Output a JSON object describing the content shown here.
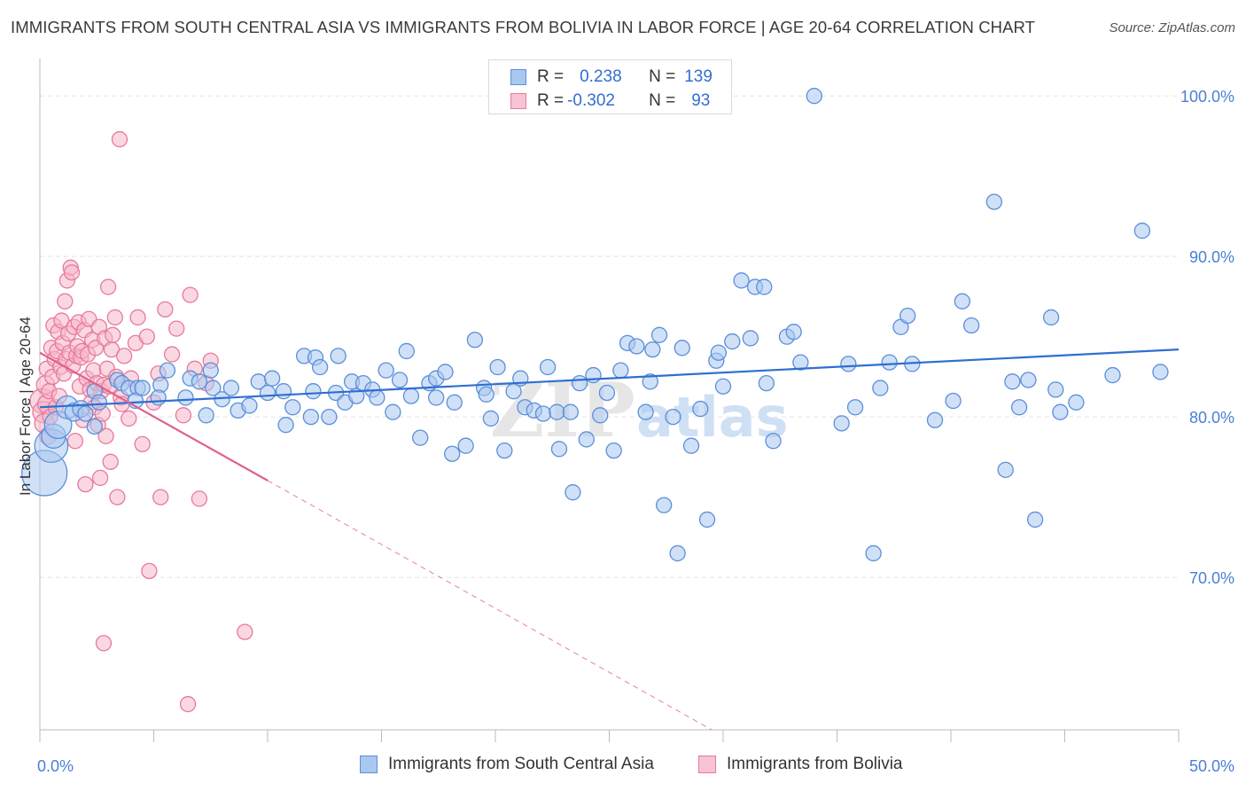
{
  "title": "IMMIGRANTS FROM SOUTH CENTRAL ASIA VS IMMIGRANTS FROM BOLIVIA IN LABOR FORCE | AGE 20-64 CORRELATION CHART",
  "source": "Source: ZipAtlas.com",
  "watermark": {
    "zip": "ZIP",
    "atlas": "atlas"
  },
  "colors": {
    "blue_fill": "#a9c8f0",
    "blue_stroke": "#5b8fd9",
    "blue_line": "#2f6fd0",
    "pink_fill": "#f6b8cb",
    "pink_stroke": "#e8799c",
    "pink_line": "#e0608c",
    "tick_text": "#4a7fd4",
    "grid": "#e3e3e3"
  },
  "legend": {
    "rows": [
      {
        "r_label": "R =",
        "r_value": "0.238",
        "n_label": "N =",
        "n_value": "139"
      },
      {
        "r_label": "R =",
        "r_value": "-0.302",
        "n_label": "N =",
        "n_value": "93"
      }
    ]
  },
  "bottom_legend": [
    {
      "label": "Immigrants from South Central Asia"
    },
    {
      "label": "Immigrants from Bolivia"
    }
  ],
  "chart_data": {
    "type": "scatter",
    "ylabel": "In Labor Force | Age 20-64",
    "xlim": [
      0,
      50
    ],
    "ylim": [
      60.5,
      102
    ],
    "x_tick_labels": [
      {
        "x": 0,
        "label": "0.0%"
      },
      {
        "x": 50,
        "label": "50.0%"
      }
    ],
    "y_tick_labels": [
      {
        "y": 100,
        "label": "100.0%"
      },
      {
        "y": 90,
        "label": "90.0%"
      },
      {
        "y": 80,
        "label": "80.0%"
      },
      {
        "y": 70,
        "label": "70.0%"
      }
    ],
    "series": [
      {
        "name": "Immigrants from South Central Asia",
        "color": "blue",
        "trend": {
          "x0": 0,
          "y0": 80.6,
          "x1": 50,
          "y1": 84.2,
          "solid_until": 50
        },
        "points": [
          [
            0.2,
            76.5,
            3
          ],
          [
            0.5,
            78.2,
            2.2
          ],
          [
            0.6,
            78.8,
            1.6
          ],
          [
            0.8,
            79.5,
            1.8
          ],
          [
            1.2,
            80.6,
            1.5
          ],
          [
            1.5,
            80.3,
            1.2
          ],
          [
            1.8,
            80.5,
            1.1
          ],
          [
            2.0,
            80.2,
            1
          ],
          [
            2.4,
            81.6,
            1
          ],
          [
            2.6,
            80.9,
            1
          ],
          [
            2.4,
            79.4,
            1
          ],
          [
            3.4,
            82.3,
            1
          ],
          [
            3.6,
            82.1,
            1
          ],
          [
            3.9,
            81.8,
            1
          ],
          [
            4.3,
            81.8,
            1
          ],
          [
            4.2,
            81.0,
            1
          ],
          [
            4.5,
            81.8,
            1
          ],
          [
            5.3,
            82.0,
            1
          ],
          [
            5.2,
            81.2,
            1
          ],
          [
            5.6,
            82.9,
            1
          ],
          [
            6.4,
            81.2,
            1
          ],
          [
            6.6,
            82.4,
            1
          ],
          [
            7.0,
            82.2,
            1
          ],
          [
            7.5,
            82.9,
            1
          ],
          [
            7.3,
            80.1,
            1
          ],
          [
            7.6,
            81.8,
            1
          ],
          [
            8.0,
            81.1,
            1
          ],
          [
            8.4,
            81.8,
            1
          ],
          [
            8.7,
            80.4,
            1
          ],
          [
            9.2,
            80.7,
            1
          ],
          [
            9.6,
            82.2,
            1
          ],
          [
            10.0,
            81.5,
            1
          ],
          [
            10.2,
            82.4,
            1
          ],
          [
            10.7,
            81.6,
            1
          ],
          [
            10.8,
            79.5,
            1
          ],
          [
            11.1,
            80.6,
            1
          ],
          [
            11.6,
            83.8,
            1
          ],
          [
            12.0,
            81.6,
            1
          ],
          [
            12.1,
            83.7,
            1
          ],
          [
            12.3,
            83.1,
            1
          ],
          [
            12.7,
            80.0,
            1
          ],
          [
            13.0,
            81.5,
            1
          ],
          [
            13.4,
            80.9,
            1
          ],
          [
            13.7,
            82.2,
            1
          ],
          [
            13.9,
            81.3,
            1
          ],
          [
            14.2,
            82.1,
            1
          ],
          [
            14.6,
            81.7,
            1
          ],
          [
            14.8,
            81.2,
            1
          ],
          [
            15.2,
            82.9,
            1
          ],
          [
            15.5,
            80.3,
            1
          ],
          [
            15.8,
            82.3,
            1
          ],
          [
            16.1,
            84.1,
            1
          ],
          [
            16.3,
            81.3,
            1
          ],
          [
            16.7,
            78.7,
            1
          ],
          [
            17.1,
            82.1,
            1
          ],
          [
            17.4,
            82.4,
            1
          ],
          [
            17.8,
            82.8,
            1
          ],
          [
            18.1,
            77.7,
            1
          ],
          [
            18.2,
            80.9,
            1
          ],
          [
            18.7,
            78.2,
            1
          ],
          [
            19.1,
            84.8,
            1
          ],
          [
            19.5,
            81.8,
            1
          ],
          [
            19.8,
            79.9,
            1
          ],
          [
            20.1,
            83.1,
            1
          ],
          [
            20.4,
            77.9,
            1
          ],
          [
            20.8,
            81.6,
            1
          ],
          [
            21.1,
            82.4,
            1
          ],
          [
            21.3,
            80.6,
            1
          ],
          [
            21.7,
            80.4,
            1
          ],
          [
            22.1,
            80.2,
            1
          ],
          [
            22.3,
            83.1,
            1
          ],
          [
            22.7,
            80.3,
            1
          ],
          [
            22.8,
            78.0,
            1
          ],
          [
            23.3,
            80.3,
            1
          ],
          [
            23.4,
            75.3,
            1
          ],
          [
            24.0,
            78.6,
            1
          ],
          [
            24.3,
            82.6,
            1
          ],
          [
            24.6,
            80.1,
            1
          ],
          [
            24.9,
            81.5,
            1
          ],
          [
            25.2,
            77.9,
            1
          ],
          [
            25.5,
            82.9,
            1
          ],
          [
            25.8,
            84.6,
            1
          ],
          [
            26.2,
            84.4,
            1
          ],
          [
            26.6,
            80.3,
            1
          ],
          [
            26.9,
            84.2,
            1
          ],
          [
            27.2,
            85.1,
            1
          ],
          [
            27.4,
            74.5,
            1
          ],
          [
            27.8,
            80.0,
            1
          ],
          [
            28.0,
            71.5,
            1
          ],
          [
            28.2,
            84.3,
            1
          ],
          [
            28.6,
            78.2,
            1
          ],
          [
            29.0,
            80.5,
            1
          ],
          [
            29.3,
            73.6,
            1
          ],
          [
            29.7,
            83.5,
            1
          ],
          [
            30.0,
            81.9,
            1
          ],
          [
            30.4,
            84.7,
            1
          ],
          [
            30.8,
            88.5,
            1
          ],
          [
            31.2,
            84.9,
            1
          ],
          [
            31.4,
            88.1,
            1
          ],
          [
            31.8,
            88.1,
            1
          ],
          [
            31.9,
            82.1,
            1
          ],
          [
            32.2,
            78.5,
            1
          ],
          [
            32.8,
            85.0,
            1
          ],
          [
            33.1,
            85.3,
            1
          ],
          [
            33.4,
            83.4,
            1
          ],
          [
            34.0,
            100.0,
            1
          ],
          [
            35.2,
            79.6,
            1
          ],
          [
            35.5,
            83.3,
            1
          ],
          [
            36.6,
            71.5,
            1
          ],
          [
            36.9,
            81.8,
            1
          ],
          [
            37.3,
            83.4,
            1
          ],
          [
            37.8,
            85.6,
            1
          ],
          [
            38.1,
            86.3,
            1
          ],
          [
            38.3,
            83.3,
            1
          ],
          [
            39.3,
            79.8,
            1
          ],
          [
            40.1,
            81.0,
            1
          ],
          [
            40.5,
            87.2,
            1
          ],
          [
            40.9,
            85.7,
            1
          ],
          [
            41.9,
            93.4,
            1
          ],
          [
            42.4,
            76.7,
            1
          ],
          [
            42.7,
            82.2,
            1
          ],
          [
            43.0,
            80.6,
            1
          ],
          [
            43.4,
            82.3,
            1
          ],
          [
            43.7,
            73.6,
            1
          ],
          [
            44.4,
            86.2,
            1
          ],
          [
            44.6,
            81.7,
            1
          ],
          [
            44.8,
            80.3,
            1
          ],
          [
            45.5,
            80.9,
            1
          ],
          [
            47.1,
            82.6,
            1
          ],
          [
            48.4,
            91.6,
            1
          ],
          [
            49.2,
            82.8,
            1
          ],
          [
            17.4,
            81.2,
            1
          ],
          [
            29.8,
            84.0,
            1
          ],
          [
            19.6,
            81.4,
            1
          ],
          [
            13.1,
            83.8,
            1
          ],
          [
            26.8,
            82.2,
            1
          ],
          [
            35.8,
            80.6,
            1
          ],
          [
            11.9,
            80.0,
            1
          ],
          [
            23.7,
            82.1,
            1
          ]
        ]
      },
      {
        "name": "Immigrants from Bolivia",
        "color": "pink",
        "trend": {
          "x0": 0,
          "y0": 84.0,
          "x1": 29.5,
          "y1": 60.5,
          "solid_until": 10
        },
        "points": [
          [
            0.1,
            81.0,
            1.6
          ],
          [
            0.15,
            80.3,
            1.4
          ],
          [
            0.2,
            79.6,
            1.3
          ],
          [
            0.25,
            82.0,
            1.2
          ],
          [
            0.3,
            80.8,
            1.2
          ],
          [
            0.3,
            83.0,
            1
          ],
          [
            0.35,
            78.8,
            1.1
          ],
          [
            0.4,
            81.6,
            1
          ],
          [
            0.45,
            80.0,
            1
          ],
          [
            0.5,
            84.3,
            1
          ],
          [
            0.55,
            82.5,
            1
          ],
          [
            0.6,
            85.7,
            1
          ],
          [
            0.65,
            83.6,
            1
          ],
          [
            0.7,
            80.6,
            1
          ],
          [
            0.75,
            84.1,
            1
          ],
          [
            0.8,
            85.3,
            1
          ],
          [
            0.85,
            81.3,
            1
          ],
          [
            0.9,
            83.1,
            1
          ],
          [
            0.95,
            86.0,
            1
          ],
          [
            1.0,
            84.6,
            1
          ],
          [
            1.05,
            82.7,
            1
          ],
          [
            1.1,
            87.2,
            1
          ],
          [
            1.15,
            83.6,
            1
          ],
          [
            1.2,
            88.5,
            1
          ],
          [
            1.25,
            85.2,
            1
          ],
          [
            1.3,
            84.0,
            1
          ],
          [
            1.35,
            89.3,
            1
          ],
          [
            1.4,
            89.0,
            1
          ],
          [
            1.45,
            83.2,
            1
          ],
          [
            1.5,
            85.6,
            1
          ],
          [
            1.55,
            78.5,
            1
          ],
          [
            1.6,
            83.8,
            1
          ],
          [
            1.65,
            84.4,
            1
          ],
          [
            1.7,
            85.9,
            1
          ],
          [
            1.75,
            81.9,
            1
          ],
          [
            1.8,
            83.7,
            1
          ],
          [
            1.85,
            84.1,
            1
          ],
          [
            1.9,
            79.8,
            1
          ],
          [
            1.95,
            85.4,
            1
          ],
          [
            2.0,
            75.8,
            1
          ],
          [
            2.05,
            82.4,
            1
          ],
          [
            2.1,
            83.9,
            1
          ],
          [
            2.15,
            86.1,
            1
          ],
          [
            2.2,
            81.7,
            1
          ],
          [
            2.25,
            80.9,
            1
          ],
          [
            2.3,
            84.8,
            1
          ],
          [
            2.35,
            82.9,
            1
          ],
          [
            2.4,
            80.6,
            1
          ],
          [
            2.45,
            84.3,
            1
          ],
          [
            2.5,
            82.1,
            1
          ],
          [
            2.55,
            79.5,
            1
          ],
          [
            2.6,
            85.6,
            1
          ],
          [
            2.65,
            76.2,
            1
          ],
          [
            2.7,
            81.6,
            1
          ],
          [
            2.75,
            80.2,
            1
          ],
          [
            2.8,
            82.0,
            1
          ],
          [
            2.85,
            84.9,
            1
          ],
          [
            2.9,
            78.8,
            1
          ],
          [
            2.95,
            83.0,
            1
          ],
          [
            3.0,
            88.1,
            1
          ],
          [
            3.05,
            81.9,
            1
          ],
          [
            3.1,
            77.2,
            1
          ],
          [
            3.15,
            84.2,
            1
          ],
          [
            3.2,
            85.1,
            1
          ],
          [
            3.3,
            86.2,
            1
          ],
          [
            3.35,
            82.5,
            1
          ],
          [
            3.4,
            75.0,
            1
          ],
          [
            3.5,
            97.3,
            1
          ],
          [
            3.55,
            81.2,
            1
          ],
          [
            3.6,
            80.8,
            1
          ],
          [
            3.7,
            83.8,
            1
          ],
          [
            3.9,
            79.9,
            1
          ],
          [
            4.0,
            82.4,
            1
          ],
          [
            4.2,
            84.6,
            1
          ],
          [
            4.3,
            86.2,
            1
          ],
          [
            4.5,
            78.3,
            1
          ],
          [
            4.7,
            85.0,
            1
          ],
          [
            4.8,
            70.4,
            1
          ],
          [
            5.0,
            80.9,
            1
          ],
          [
            5.2,
            82.7,
            1
          ],
          [
            5.3,
            75.0,
            1
          ],
          [
            5.5,
            86.7,
            1
          ],
          [
            5.8,
            83.9,
            1
          ],
          [
            6.0,
            85.5,
            1
          ],
          [
            6.3,
            80.1,
            1
          ],
          [
            6.5,
            62.1,
            1
          ],
          [
            6.6,
            87.6,
            1
          ],
          [
            6.8,
            83.0,
            1
          ],
          [
            7.0,
            74.9,
            1
          ],
          [
            7.3,
            82.1,
            1
          ],
          [
            7.5,
            83.5,
            1
          ],
          [
            9.0,
            66.6,
            1
          ],
          [
            2.8,
            65.9,
            1
          ]
        ]
      }
    ]
  }
}
